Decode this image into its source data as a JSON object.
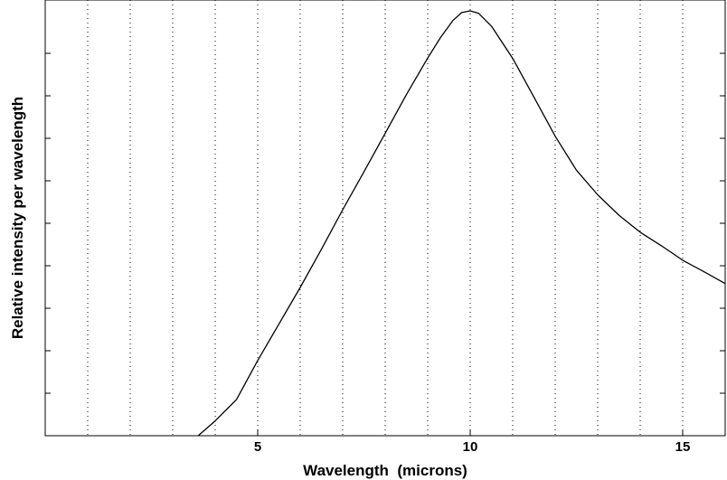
{
  "chart_data": {
    "type": "line",
    "xlabel": "Wavelength  (microns)",
    "ylabel": "Relative intensity per wavelength",
    "xlim": [
      0,
      16
    ],
    "ylim": [
      0,
      1
    ],
    "x_ticks": [
      5,
      10,
      15
    ],
    "x_tick_labels": [
      "5",
      "10",
      "15"
    ],
    "x_minor_ticks": [
      1,
      2,
      3,
      4,
      6,
      7,
      8,
      9,
      11,
      12,
      13,
      14,
      15
    ],
    "y_ticks": [
      0.1,
      0.2,
      0.3,
      0.4,
      0.5,
      0.6,
      0.7,
      0.8,
      0.9
    ],
    "grid": "vertical dotted lines at integer wavelengths",
    "series": [
      {
        "x": [
          3.6,
          4.0,
          4.5,
          5.0,
          5.5,
          6.0,
          6.5,
          7.0,
          7.5,
          8.0,
          8.5,
          9.0,
          9.3,
          9.6,
          9.8,
          10.0,
          10.2,
          10.5,
          11.0,
          11.5,
          12.0,
          12.5,
          13.0,
          13.5,
          14.0,
          14.5,
          15.0,
          15.5,
          16.0
        ],
        "y": [
          0.0,
          0.035,
          0.085,
          0.177,
          0.263,
          0.349,
          0.439,
          0.532,
          0.621,
          0.712,
          0.803,
          0.889,
          0.937,
          0.978,
          0.996,
          1.0,
          0.994,
          0.964,
          0.888,
          0.797,
          0.705,
          0.625,
          0.567,
          0.519,
          0.479,
          0.447,
          0.413,
          0.386,
          0.358
        ]
      }
    ]
  }
}
